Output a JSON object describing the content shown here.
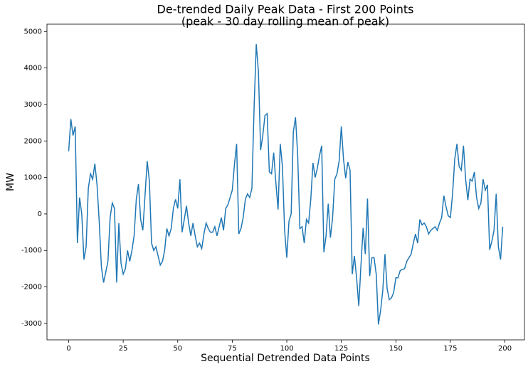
{
  "chart_data": {
    "type": "line",
    "title": "De-trended Daily Peak Data - First 200 Points",
    "subtitle": "(peak - 30 day rolling mean of peak)",
    "x_label": "Sequential Detrended Data Points",
    "y_label": "MW",
    "xlim": [
      -9.95,
      208.95
    ],
    "xticks": [
      0,
      25,
      50,
      75,
      100,
      125,
      150,
      175,
      200
    ],
    "ylim": [
      -3450,
      5200
    ],
    "yticks": [
      -3000,
      -2000,
      -1000,
      0,
      1000,
      2000,
      3000,
      4000,
      5000
    ],
    "grid": false,
    "color": "#1f77b4",
    "values": [
      1720,
      2600,
      2150,
      2400,
      -800,
      450,
      0,
      -1250,
      -900,
      700,
      1100,
      950,
      1380,
      800,
      -200,
      -1450,
      -1880,
      -1600,
      -1300,
      -100,
      300,
      150,
      -1880,
      -250,
      -1350,
      -1650,
      -1500,
      -1000,
      -1300,
      -1000,
      -600,
      400,
      820,
      -150,
      -450,
      500,
      1450,
      900,
      -800,
      -1000,
      -900,
      -1150,
      -1400,
      -1300,
      -1000,
      -400,
      -600,
      -400,
      150,
      400,
      150,
      950,
      -500,
      -150,
      220,
      -250,
      -600,
      -250,
      -600,
      -900,
      -800,
      -950,
      -550,
      -250,
      -400,
      -500,
      -500,
      -350,
      -600,
      -350,
      -100,
      -450,
      150,
      250,
      450,
      650,
      1350,
      1920,
      -550,
      -400,
      -100,
      400,
      550,
      450,
      700,
      2900,
      4650,
      3900,
      1750,
      2150,
      2700,
      2750,
      1150,
      1100,
      1680,
      850,
      120,
      1920,
      1300,
      -450,
      -1200,
      -200,
      0,
      2250,
      2650,
      1600,
      -400,
      -350,
      -800,
      -150,
      -250,
      400,
      1400,
      1000,
      1250,
      1600,
      1870,
      -1050,
      -600,
      280,
      -650,
      -100,
      950,
      1100,
      1450,
      2400,
      1500,
      980,
      1420,
      1200,
      -1650,
      -1150,
      -1750,
      -2520,
      -1400,
      -380,
      -1100,
      420,
      -1700,
      -1200,
      -1200,
      -1650,
      -3030,
      -2650,
      -2100,
      -1100,
      -2050,
      -2350,
      -2300,
      -2150,
      -1750,
      -1750,
      -1550,
      -1520,
      -1500,
      -1300,
      -1200,
      -1100,
      -800,
      -550,
      -800,
      -150,
      -300,
      -250,
      -350,
      -550,
      -450,
      -400,
      -350,
      -450,
      -250,
      -100,
      500,
      200,
      -50,
      -100,
      550,
      1500,
      1920,
      1300,
      1200,
      1870,
      950,
      380,
      950,
      900,
      1150,
      450,
      150,
      300,
      950,
      650,
      800,
      -980,
      -750,
      -450,
      550,
      -900,
      -1250,
      -350
    ]
  }
}
